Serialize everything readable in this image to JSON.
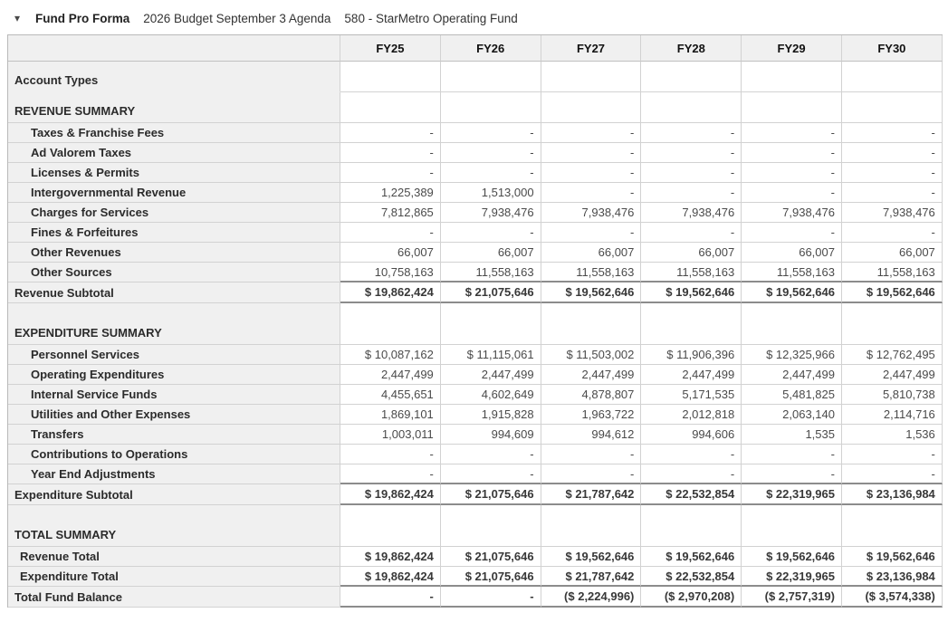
{
  "title_bar": {
    "collapse_icon": "▾",
    "title": "Fund Pro Forma",
    "subtitle_budget": "2026 Budget September 3 Agenda",
    "subtitle_fund": "580 - StarMetro Operating Fund"
  },
  "colors": {
    "header_bg": "#f0f0f0",
    "label_bg": "#f0f0f0",
    "grid_line": "#d2d2d2",
    "strong_line": "#8c8c8c",
    "label_text": "#2b2b2b",
    "value_text": "#4a4a4a"
  },
  "table": {
    "columns": [
      "FY25",
      "FY26",
      "FY27",
      "FY28",
      "FY29",
      "FY30"
    ],
    "rows": [
      {
        "label": "Account Types",
        "type": "section",
        "tall": false,
        "values": []
      },
      {
        "label": "REVENUE SUMMARY",
        "type": "section",
        "tall": false,
        "values": []
      },
      {
        "label": "Taxes & Franchise Fees",
        "type": "detail",
        "values": [
          "-",
          "-",
          "-",
          "-",
          "-",
          "-"
        ]
      },
      {
        "label": "Ad Valorem Taxes",
        "type": "detail",
        "values": [
          "-",
          "-",
          "-",
          "-",
          "-",
          "-"
        ]
      },
      {
        "label": "Licenses & Permits",
        "type": "detail",
        "values": [
          "-",
          "-",
          "-",
          "-",
          "-",
          "-"
        ]
      },
      {
        "label": "Intergovernmental Revenue",
        "type": "detail",
        "values": [
          "1,225,389",
          "1,513,000",
          "-",
          "-",
          "-",
          "-"
        ]
      },
      {
        "label": "Charges for Services",
        "type": "detail",
        "values": [
          "7,812,865",
          "7,938,476",
          "7,938,476",
          "7,938,476",
          "7,938,476",
          "7,938,476"
        ]
      },
      {
        "label": "Fines & Forfeitures",
        "type": "detail",
        "values": [
          "-",
          "-",
          "-",
          "-",
          "-",
          "-"
        ]
      },
      {
        "label": "Other Revenues",
        "type": "detail",
        "values": [
          "66,007",
          "66,007",
          "66,007",
          "66,007",
          "66,007",
          "66,007"
        ]
      },
      {
        "label": "Other Sources",
        "type": "detail",
        "values": [
          "10,758,163",
          "11,558,163",
          "11,558,163",
          "11,558,163",
          "11,558,163",
          "11,558,163"
        ]
      },
      {
        "label": "Revenue Subtotal",
        "type": "subtotal",
        "values": [
          "$ 19,862,424",
          "$ 21,075,646",
          "$ 19,562,646",
          "$ 19,562,646",
          "$ 19,562,646",
          "$ 19,562,646"
        ]
      },
      {
        "label": "EXPENDITURE SUMMARY",
        "type": "section",
        "tall": true,
        "values": []
      },
      {
        "label": "Personnel Services",
        "type": "detail",
        "values": [
          "$ 10,087,162",
          "$ 11,115,061",
          "$ 11,503,002",
          "$ 11,906,396",
          "$ 12,325,966",
          "$ 12,762,495"
        ]
      },
      {
        "label": "Operating Expenditures",
        "type": "detail",
        "values": [
          "2,447,499",
          "2,447,499",
          "2,447,499",
          "2,447,499",
          "2,447,499",
          "2,447,499"
        ]
      },
      {
        "label": "Internal Service Funds",
        "type": "detail",
        "values": [
          "4,455,651",
          "4,602,649",
          "4,878,807",
          "5,171,535",
          "5,481,825",
          "5,810,738"
        ]
      },
      {
        "label": "Utilities and Other Expenses",
        "type": "detail",
        "values": [
          "1,869,101",
          "1,915,828",
          "1,963,722",
          "2,012,818",
          "2,063,140",
          "2,114,716"
        ]
      },
      {
        "label": "Transfers",
        "type": "detail",
        "values": [
          "1,003,011",
          "994,609",
          "994,612",
          "994,606",
          "1,535",
          "1,536"
        ]
      },
      {
        "label": "Contributions to Operations",
        "type": "detail",
        "values": [
          "-",
          "-",
          "-",
          "-",
          "-",
          "-"
        ]
      },
      {
        "label": "Year End Adjustments",
        "type": "detail",
        "values": [
          "-",
          "-",
          "-",
          "-",
          "-",
          "-"
        ]
      },
      {
        "label": "Expenditure Subtotal",
        "type": "subtotal",
        "values": [
          "$ 19,862,424",
          "$ 21,075,646",
          "$ 21,787,642",
          "$ 22,532,854",
          "$ 22,319,965",
          "$ 23,136,984"
        ]
      },
      {
        "label": "TOTAL SUMMARY",
        "type": "section",
        "tall": true,
        "values": []
      },
      {
        "label": "Revenue Total",
        "type": "total",
        "values": [
          "$ 19,862,424",
          "$ 21,075,646",
          "$ 19,562,646",
          "$ 19,562,646",
          "$ 19,562,646",
          "$ 19,562,646"
        ]
      },
      {
        "label": "Expenditure Total",
        "type": "total",
        "values": [
          "$ 19,862,424",
          "$ 21,075,646",
          "$ 21,787,642",
          "$ 22,532,854",
          "$ 22,319,965",
          "$ 23,136,984"
        ]
      },
      {
        "label": "Total Fund Balance",
        "type": "grandtotal",
        "values": [
          "-",
          "-",
          "($ 2,224,996)",
          "($ 2,970,208)",
          "($ 2,757,319)",
          "($ 3,574,338)"
        ]
      }
    ]
  }
}
